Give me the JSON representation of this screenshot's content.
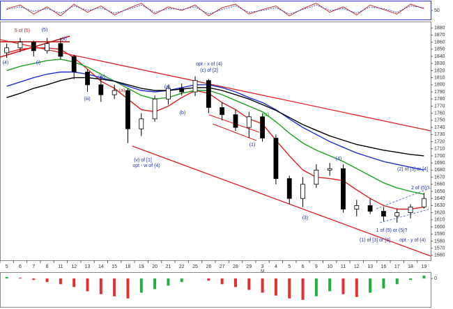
{
  "chart_data": [
    {
      "type": "line",
      "ylim": [
        0,
        100
      ],
      "yticks": [
        50
      ],
      "series": [
        {
          "color": "#d02020",
          "dash": false,
          "values": [
            60,
            80,
            30,
            70,
            20,
            85,
            40,
            75,
            25,
            60,
            90,
            30,
            70,
            50,
            80,
            20,
            65,
            85,
            30,
            55,
            75,
            20,
            60,
            90,
            40,
            70,
            25,
            80,
            55,
            30,
            85,
            60
          ]
        },
        {
          "color": "#3040c0",
          "dash": true,
          "values": [
            55,
            70,
            45,
            60,
            35,
            75,
            50,
            65,
            35,
            55,
            80,
            40,
            60,
            55,
            70,
            30,
            55,
            75,
            40,
            50,
            65,
            30,
            55,
            80,
            50,
            60,
            35,
            70,
            60,
            40,
            75,
            65
          ]
        }
      ]
    },
    {
      "type": "candlestick",
      "categories": [
        "5",
        "6",
        "7",
        "8",
        "11",
        "12",
        "13",
        "14",
        "15",
        "18",
        "19",
        "20",
        "21",
        "22",
        "25",
        "26",
        "27",
        "28",
        "29",
        "3",
        "4",
        "5",
        "6",
        "9",
        "10",
        "11",
        "12",
        "13",
        "16",
        "17",
        "18",
        "19"
      ],
      "month_label": "M",
      "open": [
        1845,
        1852,
        1860,
        1848,
        1858,
        1840,
        1818,
        1800,
        1786,
        1792,
        1738,
        1752,
        1780,
        1795,
        1790,
        1806,
        1768,
        1758,
        1740,
        1755,
        1725,
        1668,
        1640,
        1660,
        1680,
        1682,
        1625,
        1630,
        1622,
        1615,
        1620,
        1628
      ],
      "high": [
        1858,
        1866,
        1862,
        1866,
        1866,
        1842,
        1822,
        1812,
        1800,
        1795,
        1760,
        1785,
        1800,
        1802,
        1812,
        1808,
        1775,
        1765,
        1762,
        1760,
        1730,
        1672,
        1670,
        1688,
        1690,
        1688,
        1638,
        1640,
        1628,
        1626,
        1632,
        1648
      ],
      "low": [
        1838,
        1846,
        1840,
        1844,
        1836,
        1808,
        1790,
        1776,
        1780,
        1718,
        1728,
        1748,
        1772,
        1785,
        1784,
        1760,
        1750,
        1735,
        1725,
        1720,
        1660,
        1632,
        1628,
        1655,
        1672,
        1620,
        1615,
        1618,
        1608,
        1606,
        1612,
        1626
      ],
      "close": [
        1852,
        1860,
        1848,
        1858,
        1840,
        1818,
        1800,
        1786,
        1792,
        1738,
        1752,
        1780,
        1795,
        1790,
        1806,
        1768,
        1758,
        1740,
        1755,
        1725,
        1668,
        1640,
        1660,
        1680,
        1682,
        1625,
        1630,
        1622,
        1615,
        1620,
        1628,
        1640
      ],
      "candle_color": "#000000",
      "series": [
        {
          "color": "#e02020",
          "values": [
            1845,
            1850,
            1852,
            1852,
            1850,
            1838,
            1822,
            1805,
            1795,
            1780,
            1765,
            1762,
            1770,
            1782,
            1792,
            1788,
            1775,
            1765,
            1752,
            1745,
            1722,
            1700,
            1680,
            1670,
            1668,
            1665,
            1652,
            1640,
            1630,
            1625,
            1625,
            1628
          ]
        },
        {
          "color": "#20a020",
          "values": [
            1820,
            1826,
            1830,
            1834,
            1836,
            1832,
            1825,
            1815,
            1805,
            1795,
            1785,
            1780,
            1782,
            1788,
            1792,
            1792,
            1786,
            1778,
            1770,
            1762,
            1748,
            1732,
            1718,
            1708,
            1700,
            1692,
            1682,
            1672,
            1662,
            1655,
            1650,
            1646
          ]
        },
        {
          "color": "#2030d0",
          "values": [
            1798,
            1804,
            1810,
            1815,
            1818,
            1818,
            1815,
            1810,
            1805,
            1798,
            1792,
            1790,
            1792,
            1796,
            1800,
            1800,
            1796,
            1790,
            1782,
            1775,
            1765,
            1752,
            1740,
            1730,
            1720,
            1712,
            1704,
            1698,
            1692,
            1688,
            1684,
            1680
          ]
        },
        {
          "color": "#000000",
          "values": [
            1782,
            1788,
            1795,
            1800,
            1806,
            1810,
            1810,
            1808,
            1805,
            1800,
            1795,
            1792,
            1792,
            1794,
            1796,
            1796,
            1792,
            1786,
            1780,
            1772,
            1764,
            1754,
            1744,
            1736,
            1728,
            1722,
            1716,
            1712,
            1708,
            1705,
            1702,
            1700
          ]
        }
      ],
      "ylim": [
        1553,
        1888
      ],
      "yticks": [
        1560,
        1570,
        1580,
        1590,
        1600,
        1610,
        1620,
        1630,
        1640,
        1650,
        1660,
        1670,
        1680,
        1690,
        1700,
        1710,
        1720,
        1730,
        1740,
        1750,
        1760,
        1770,
        1780,
        1790,
        1800,
        1810,
        1820,
        1830,
        1840,
        1850,
        1860,
        1870,
        1880
      ],
      "annotations": [
        {
          "text": "5 of (5)",
          "color": "#d02020"
        },
        {
          "text": "(5)",
          "color": "#2030c0"
        },
        {
          "text": "(4)",
          "color": "#2030c0"
        },
        {
          "text": "(i)",
          "color": "#2030c0"
        },
        {
          "text": "(ii)",
          "color": "#2030c0"
        },
        {
          "text": "(iii)",
          "color": "#2030c0"
        },
        {
          "text": "(iv)",
          "color": "#2030c0"
        },
        {
          "text": "(a)",
          "color": "#d02020"
        },
        {
          "text": "(v) of [1]",
          "color": "#2030c0"
        },
        {
          "text": "opt - w of (4)",
          "color": "#2030c0"
        },
        {
          "text": "(a)",
          "color": "#2030c0"
        },
        {
          "text": "(b)",
          "color": "#2030c0"
        },
        {
          "text": "opt - x of (4)",
          "color": "#2030c0"
        },
        {
          "text": "(c) of [2]",
          "color": "#2030c0"
        },
        {
          "text": "(1)",
          "color": "#2030c0"
        },
        {
          "text": "(2)",
          "color": "#20a020"
        },
        {
          "text": "(3)",
          "color": "#2030c0"
        },
        {
          "text": "(4)",
          "color": "#2030c0"
        },
        {
          "text": "(2) of [3] or [4]",
          "color": "#2030c0"
        },
        {
          "text": "2 of (5)?",
          "color": "#2030c0"
        },
        {
          "text": "1 of (5) or (5)?",
          "color": "#2030c0"
        },
        {
          "text": "(1) of [3] or [3]",
          "color": "#2030c0"
        },
        {
          "text": "opt - y of (4)",
          "color": "#2030c0"
        }
      ]
    },
    {
      "type": "bar",
      "ylim": [
        -40,
        8
      ],
      "yticks": [
        0
      ],
      "up_color": "#20b040",
      "down_color": "#e03030",
      "values": [
        2,
        1,
        -2,
        -5,
        -8,
        -12,
        -18,
        -22,
        -25,
        -28,
        -20,
        -15,
        -10,
        -5,
        0,
        -3,
        -8,
        -12,
        -16,
        -20,
        -24,
        -28,
        -30,
        -25,
        -18,
        -22,
        -26,
        -20,
        -14,
        -8,
        -2,
        4
      ]
    }
  ]
}
